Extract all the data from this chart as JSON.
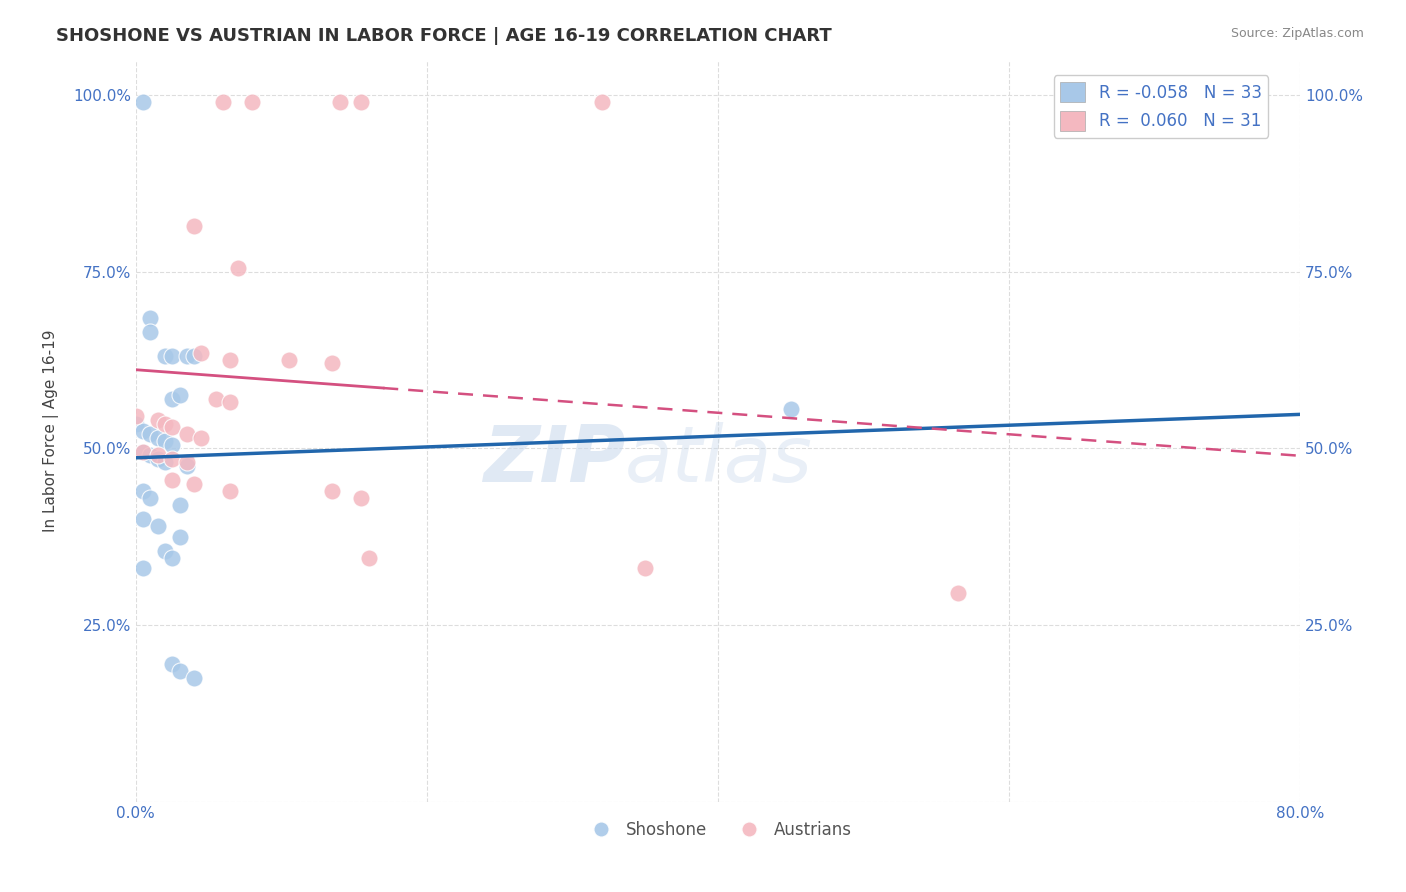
{
  "title": "SHOSHONE VS AUSTRIAN IN LABOR FORCE | AGE 16-19 CORRELATION CHART",
  "source": "Source: ZipAtlas.com",
  "ylabel": "In Labor Force | Age 16-19",
  "xmin": 0.0,
  "xmax": 0.8,
  "ymin": 0.0,
  "ymax": 1.05,
  "yticks": [
    0.0,
    0.25,
    0.5,
    0.75,
    1.0
  ],
  "ytick_labels": [
    "",
    "25.0%",
    "50.0%",
    "75.0%",
    "100.0%"
  ],
  "xticks": [
    0.0,
    0.2,
    0.4,
    0.6,
    0.8
  ],
  "xtick_labels": [
    "0.0%",
    "",
    "",
    "",
    "80.0%"
  ],
  "legend_r_blue": "-0.058",
  "legend_n_blue": "33",
  "legend_r_pink": "0.060",
  "legend_n_pink": "31",
  "blue_color": "#a8c8e8",
  "pink_color": "#f4b8c0",
  "trend_blue_color": "#2166ac",
  "trend_pink_color": "#d45080",
  "blue_scatter": [
    [
      0.005,
      0.99
    ],
    [
      0.01,
      0.685
    ],
    [
      0.01,
      0.665
    ],
    [
      0.02,
      0.63
    ],
    [
      0.025,
      0.63
    ],
    [
      0.035,
      0.63
    ],
    [
      0.04,
      0.63
    ],
    [
      0.025,
      0.57
    ],
    [
      0.03,
      0.575
    ],
    [
      0.0,
      0.535
    ],
    [
      0.005,
      0.525
    ],
    [
      0.01,
      0.52
    ],
    [
      0.015,
      0.515
    ],
    [
      0.02,
      0.51
    ],
    [
      0.025,
      0.505
    ],
    [
      0.005,
      0.495
    ],
    [
      0.01,
      0.49
    ],
    [
      0.015,
      0.485
    ],
    [
      0.02,
      0.48
    ],
    [
      0.035,
      0.475
    ],
    [
      0.005,
      0.44
    ],
    [
      0.01,
      0.43
    ],
    [
      0.03,
      0.42
    ],
    [
      0.005,
      0.4
    ],
    [
      0.015,
      0.39
    ],
    [
      0.03,
      0.375
    ],
    [
      0.02,
      0.355
    ],
    [
      0.025,
      0.345
    ],
    [
      0.005,
      0.33
    ],
    [
      0.025,
      0.195
    ],
    [
      0.03,
      0.185
    ],
    [
      0.04,
      0.175
    ],
    [
      0.45,
      0.555
    ]
  ],
  "pink_scatter": [
    [
      0.06,
      0.99
    ],
    [
      0.08,
      0.99
    ],
    [
      0.14,
      0.99
    ],
    [
      0.155,
      0.99
    ],
    [
      0.32,
      0.99
    ],
    [
      0.04,
      0.815
    ],
    [
      0.07,
      0.755
    ],
    [
      0.045,
      0.635
    ],
    [
      0.065,
      0.625
    ],
    [
      0.105,
      0.625
    ],
    [
      0.135,
      0.62
    ],
    [
      0.055,
      0.57
    ],
    [
      0.065,
      0.565
    ],
    [
      0.0,
      0.545
    ],
    [
      0.015,
      0.54
    ],
    [
      0.02,
      0.535
    ],
    [
      0.025,
      0.53
    ],
    [
      0.035,
      0.52
    ],
    [
      0.045,
      0.515
    ],
    [
      0.005,
      0.495
    ],
    [
      0.015,
      0.49
    ],
    [
      0.025,
      0.485
    ],
    [
      0.035,
      0.48
    ],
    [
      0.025,
      0.455
    ],
    [
      0.04,
      0.45
    ],
    [
      0.065,
      0.44
    ],
    [
      0.135,
      0.44
    ],
    [
      0.155,
      0.43
    ],
    [
      0.16,
      0.345
    ],
    [
      0.35,
      0.33
    ],
    [
      0.565,
      0.295
    ]
  ],
  "watermark_line1": "ZIP",
  "watermark_line2": "atlas",
  "background_color": "#ffffff",
  "grid_color": "#dddddd"
}
